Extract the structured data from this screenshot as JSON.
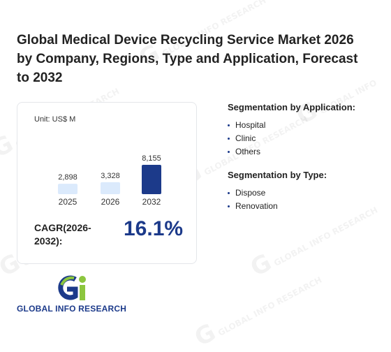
{
  "title": "Global Medical Device Recycling Service Market 2026 by Company, Regions, Type and Application, Forecast to 2032",
  "unit": "Unit: US$ M",
  "cagr": {
    "label": "CAGR(2026-2032):",
    "value": "16.1%"
  },
  "segments": [
    {
      "title": "Segmentation by Application:",
      "items": [
        "Hospital",
        "Clinic",
        "Others"
      ]
    },
    {
      "title": "Segmentation by Type:",
      "items": [
        "Dispose",
        "Renovation"
      ]
    }
  ],
  "logo": {
    "text": "GLOBAL INFO RESEARCH"
  },
  "colors": {
    "accent": "#1c3a8a",
    "bar_light": "#dbeafc",
    "bar_dark": "#1c3a8a",
    "logo_green": "#8cc63f"
  },
  "chart_data": {
    "type": "bar",
    "categories": [
      "2025",
      "2026",
      "2032"
    ],
    "values": [
      2898,
      3328,
      8155
    ],
    "value_labels": [
      "2,898",
      "3,328",
      "8,155"
    ],
    "highlight": [
      false,
      false,
      true
    ],
    "title": "",
    "xlabel": "",
    "ylabel": "",
    "ylim": [
      0,
      8155
    ],
    "grid": false
  }
}
